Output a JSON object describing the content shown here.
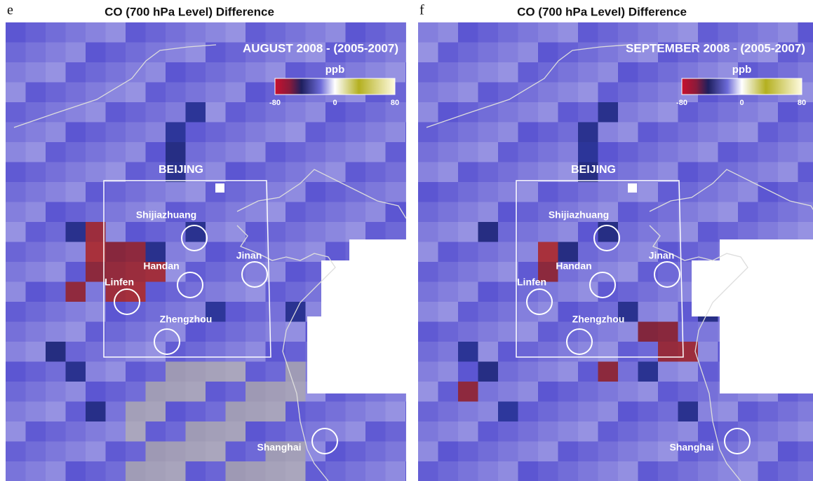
{
  "panels": [
    {
      "label": "e",
      "title": "CO (700 hPa Level) Difference",
      "subtitle": "AUGUST 2008 - (2005-2007)",
      "colorbar": {
        "unit": "ppb",
        "ticks": [
          -80,
          0,
          80
        ]
      },
      "cities": [
        "BEIJING",
        "Shijiazhuang",
        "Handan",
        "Linfen",
        "Jinan",
        "Zhengzhou",
        "Shanghai"
      ]
    },
    {
      "label": "f",
      "title": "CO (700 hPa Level) Difference",
      "subtitle": "SEPTEMBER 2008 - (2005-2007)",
      "colorbar": {
        "unit": "ppb",
        "ticks": [
          -80,
          0,
          80
        ]
      },
      "cities": [
        "BEIJING",
        "Shijiazhuang",
        "Handan",
        "Linfen",
        "Jinan",
        "Zhengzhou",
        "Shanghai"
      ]
    }
  ]
}
